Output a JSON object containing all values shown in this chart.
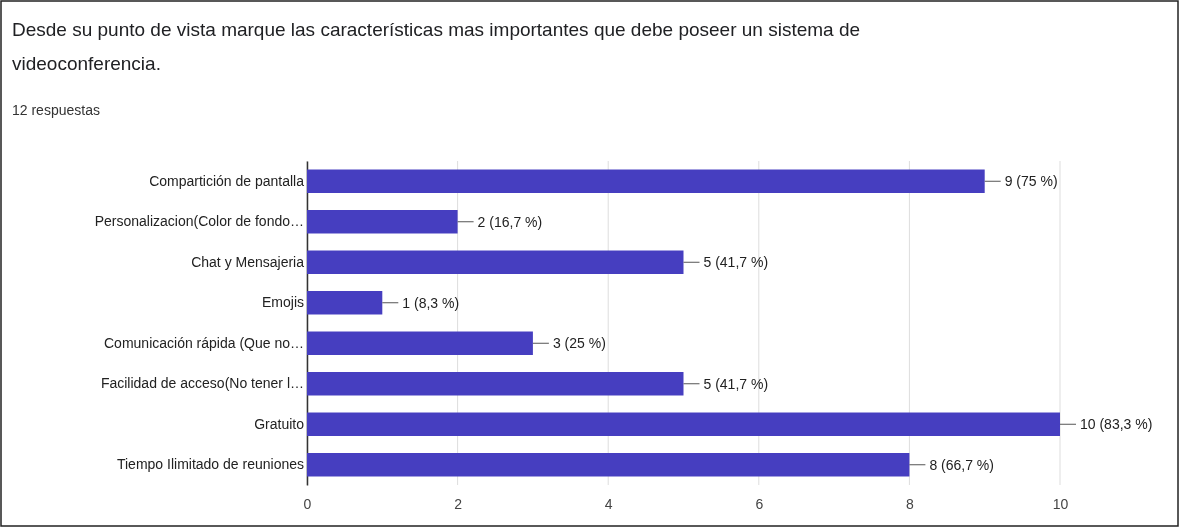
{
  "chart_data": {
    "type": "bar",
    "orientation": "horizontal",
    "title": "Desde su punto de vista marque las características mas importantes que debe poseer un sistema de videoconferencia.",
    "subtitle": "12 respuestas",
    "categories": [
      "Compartición de pantalla",
      "Personalizacion(Color de fondo…",
      "Chat y Mensajeria",
      "Emojis",
      "Comunicación rápida (Que no…",
      "Facilidad de acceso(No tener l…",
      "Gratuito",
      "Tiempo Ilimitado de reuniones"
    ],
    "values": [
      9,
      2,
      5,
      1,
      3,
      5,
      10,
      8
    ],
    "value_labels": [
      "9 (75 %)",
      "2 (16,7 %)",
      "5 (41,7 %)",
      "1 (8,3 %)",
      "3 (25 %)",
      "5 (41,7 %)",
      "10 (83,3 %)",
      "8 (66,7 %)"
    ],
    "color": "#463ec0",
    "xlim": [
      0,
      10
    ],
    "xticks": [
      0,
      2,
      4,
      6,
      8,
      10
    ],
    "grid": "x"
  }
}
